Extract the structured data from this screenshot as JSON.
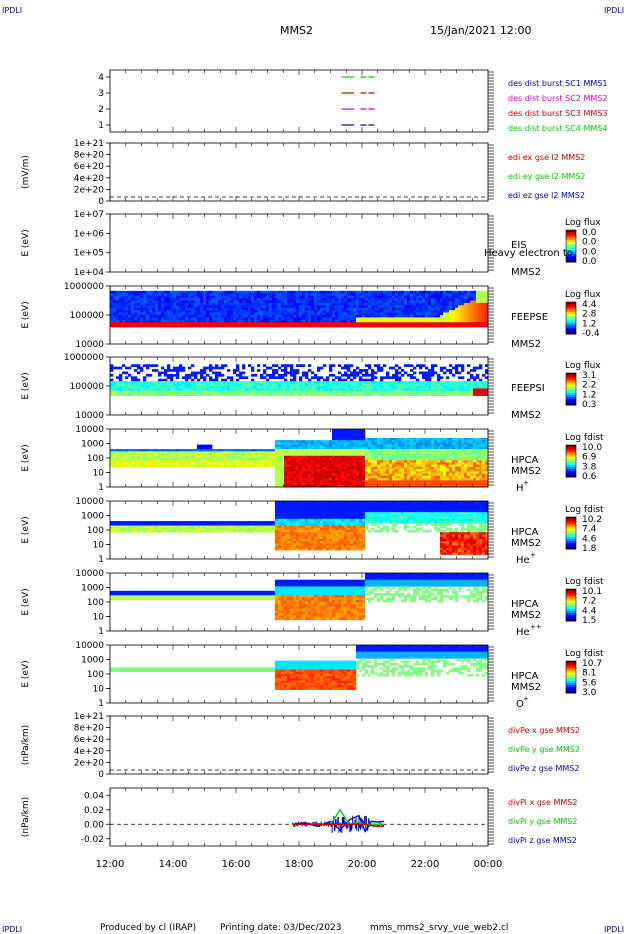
{
  "corner_label": "IPDLI",
  "header": {
    "spacecraft": "MMS2",
    "date": "15/Jan/2021 12:00"
  },
  "footer": {
    "producer": "Produced by cl (IRAP)",
    "printing": "Printing date: 03/Dec/2023",
    "file": "mms_mms2_srvy_vue_web2.cl"
  },
  "colors": {
    "blue": "#0000cc",
    "magenta": "#cc00cc",
    "red": "#cc0000",
    "green": "#00cc00"
  },
  "chart_data": [
    {
      "type": "line",
      "id": "burst",
      "ylabel": "",
      "yticks": [
        "1",
        "2",
        "3",
        "4"
      ],
      "legend": [
        {
          "text": "des dist burst SC1 MMS1",
          "color": "#0000cc"
        },
        {
          "text": "des dist burst SC2 MMS2",
          "color": "#cc00cc"
        },
        {
          "text": "des dist burst SC3 MMS3",
          "color": "#cc0000"
        },
        {
          "text": "des dist burst SC4 MMS4",
          "color": "#00cc00"
        }
      ],
      "series": [
        {
          "level": 4,
          "color": "#00cc00",
          "segments": [
            [
              19.35,
              19.75
            ],
            [
              19.95,
              20.4
            ]
          ]
        },
        {
          "level": 3,
          "color": "#cc0000",
          "segments": [
            [
              19.35,
              19.75
            ],
            [
              19.95,
              20.4
            ]
          ]
        },
        {
          "level": 2,
          "color": "#cc00cc",
          "segments": [
            [
              19.35,
              19.75
            ],
            [
              19.95,
              20.4
            ]
          ]
        },
        {
          "level": 1,
          "color": "#0000cc",
          "segments": [
            [
              19.35,
              19.75
            ],
            [
              19.95,
              20.4
            ]
          ]
        }
      ]
    },
    {
      "type": "line",
      "id": "edi",
      "ylabel": "(mV/m)",
      "yticks": [
        "0",
        "2e+20",
        "4e+20",
        "6e+20",
        "8e+20",
        "1e+21"
      ],
      "legend": [
        {
          "text": "edi ex gse l2 MMS2",
          "color": "#cc0000"
        },
        {
          "text": "edi ey gse l2 MMS2",
          "color": "#00cc00"
        },
        {
          "text": "edi ez gse l2 MMS2",
          "color": "#0000cc"
        }
      ]
    },
    {
      "type": "heatmap",
      "id": "eis",
      "ylabel": "E (eV)",
      "yticks": [
        "1e+04",
        "1e+05",
        "1e+06",
        "1e+07"
      ],
      "instrument": "EIS",
      "spacecraft": "MMS2",
      "overlay": "Heavy electron to",
      "colorbar": {
        "title": "Log flux",
        "labels": [
          "0.0",
          "0.0",
          "0.0",
          "0.0"
        ]
      }
    },
    {
      "type": "heatmap",
      "id": "feepse",
      "ylabel": "E (eV)",
      "yticks": [
        "10000",
        "100000",
        "1000000"
      ],
      "instrument": "FEEPSE",
      "spacecraft": "MMS2",
      "colorbar": {
        "title": "Log flux",
        "labels": [
          "4.4",
          "2.8",
          "1.2",
          "-0.4"
        ]
      }
    },
    {
      "type": "heatmap",
      "id": "feepsi",
      "ylabel": "E (eV)",
      "yticks": [
        "10000",
        "100000",
        "1000000"
      ],
      "instrument": "FEEPSI",
      "spacecraft": "MMS2",
      "colorbar": {
        "title": "Log flux",
        "labels": [
          "3.1",
          "2.2",
          "1.2",
          "0.3"
        ]
      }
    },
    {
      "type": "heatmap",
      "id": "hpca_h",
      "ylabel": "E (eV)",
      "yticks": [
        "1",
        "10",
        "100",
        "1000",
        "10000"
      ],
      "instrument": "HPCA",
      "spacecraft": "MMS2",
      "species": "H",
      "charge": "+",
      "colorbar": {
        "title": "Log fdist",
        "labels": [
          "10.0",
          "6.9",
          "3.8",
          "0.6"
        ]
      }
    },
    {
      "type": "heatmap",
      "id": "hpca_he",
      "ylabel": "E (eV)",
      "yticks": [
        "1",
        "10",
        "100",
        "1000",
        "10000"
      ],
      "instrument": "HPCA",
      "spacecraft": "MMS2",
      "species": "He",
      "charge": "+",
      "colorbar": {
        "title": "Log fdist",
        "labels": [
          "10.2",
          "7.4",
          "4.6",
          "1.8"
        ]
      }
    },
    {
      "type": "heatmap",
      "id": "hpca_he2",
      "ylabel": "E (eV)",
      "yticks": [
        "1",
        "10",
        "100",
        "1000",
        "10000"
      ],
      "instrument": "HPCA",
      "spacecraft": "MMS2",
      "species": "He",
      "charge": "++",
      "colorbar": {
        "title": "Log fdist",
        "labels": [
          "10.1",
          "7.2",
          "4.4",
          "1.5"
        ]
      }
    },
    {
      "type": "heatmap",
      "id": "hpca_o",
      "ylabel": "E (eV)",
      "yticks": [
        "1",
        "10",
        "100",
        "1000",
        "10000"
      ],
      "instrument": "HPCA",
      "spacecraft": "MMS2",
      "species": "O",
      "charge": "+",
      "colorbar": {
        "title": "Log fdist",
        "labels": [
          "10.7",
          "8.1",
          "5.6",
          "3.0"
        ]
      }
    },
    {
      "type": "line",
      "id": "divpe",
      "ylabel": "(nPa/km)",
      "yticks": [
        "0",
        "2e+20",
        "4e+20",
        "6e+20",
        "8e+20",
        "1e+21"
      ],
      "legend": [
        {
          "text": "divPe x gse MMS2",
          "color": "#cc0000"
        },
        {
          "text": "divPe y gse MMS2",
          "color": "#00cc00"
        },
        {
          "text": "divPe z gse MMS2",
          "color": "#0000cc"
        }
      ]
    },
    {
      "type": "line",
      "id": "divpi",
      "ylabel": "(nPa/km)",
      "yticks": [
        "-0.02",
        "0.00",
        "0.02",
        "0.04"
      ],
      "ylim": [
        -0.03,
        0.05
      ],
      "legend": [
        {
          "text": "divPi x gse MMS2",
          "color": "#cc0000"
        },
        {
          "text": "divPi y gse MMS2",
          "color": "#00cc00"
        },
        {
          "text": "divPi z gse MMS2",
          "color": "#0000cc"
        }
      ],
      "x": [
        17.8,
        18.2,
        18.6,
        19.0,
        19.3,
        19.6,
        19.9,
        20.1,
        20.3,
        20.5,
        20.7
      ],
      "series": [
        {
          "name": "divPi z gse MMS2",
          "color": "#0000cc",
          "values": [
            0.0,
            0.002,
            -0.003,
            0.004,
            -0.008,
            0.006,
            0.012,
            -0.01,
            0.004,
            0.003,
            0.004
          ]
        },
        {
          "name": "divPi y gse MMS2",
          "color": "#00cc00",
          "values": [
            0.0,
            0.0,
            0.001,
            -0.001,
            0.02,
            0.0,
            0.003,
            0.0,
            0.0,
            0.0,
            0.0
          ]
        },
        {
          "name": "divPi x gse MMS2",
          "color": "#cc0000",
          "values": [
            0.0,
            0.0,
            0.0,
            0.0,
            0.0,
            0.0,
            0.0,
            0.0,
            -0.002,
            -0.003,
            -0.003
          ]
        }
      ]
    }
  ],
  "xaxis": {
    "ticks": [
      "12:00",
      "14:00",
      "16:00",
      "18:00",
      "20:00",
      "22:00",
      "00:00"
    ],
    "range_hours": [
      12,
      24
    ]
  }
}
